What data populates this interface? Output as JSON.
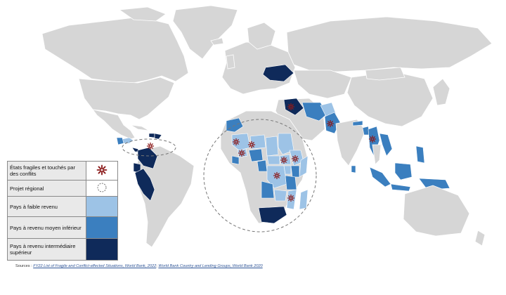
{
  "legend": {
    "fragile": {
      "label": "États fragiles et touchés par des conflits",
      "icon": "fragile-state-star-icon",
      "color": "#8b1a1a"
    },
    "regional": {
      "label": "Projet régional",
      "icon": "dashed-circle-icon"
    },
    "low_income": {
      "label": "Pays à faible revenu",
      "color": "#9dc3e6"
    },
    "lower_middle": {
      "label": "Pays à revenu moyen inférieur",
      "color": "#3b7fbf"
    },
    "upper_middle": {
      "label": "Pays à revenu intermédiaire supérieur",
      "color": "#0f2a5a"
    }
  },
  "sources": {
    "prefix": "Sources : ",
    "link1": "FY22 List of Fragile and Conflict-affected Situations, World Bank, 2022",
    "separator": "; ",
    "link2": "World Bank Country and Lending Groups, World Bank 2020"
  }
}
